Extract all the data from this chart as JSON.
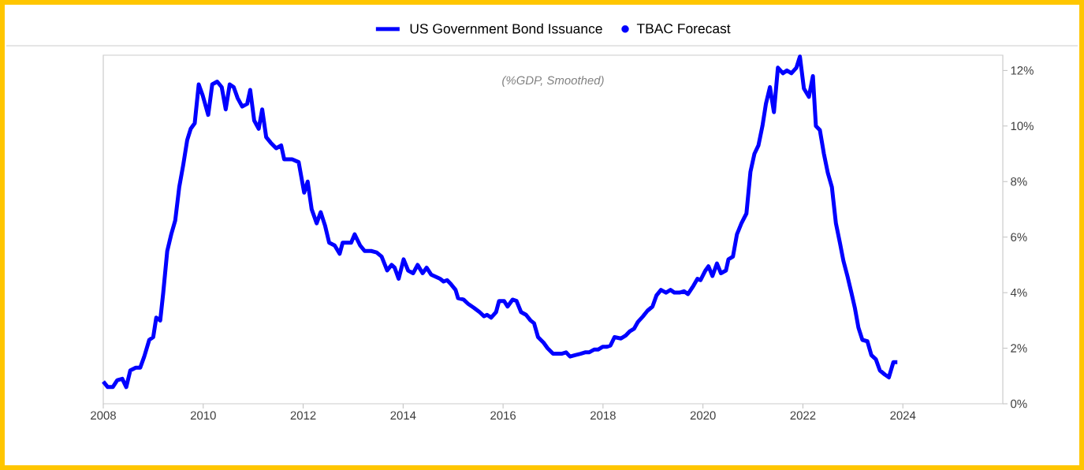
{
  "chart_data": {
    "type": "line",
    "annotations": [
      "(%GDP, Smoothed)"
    ],
    "legend": "top",
    "xlim": [
      2008,
      2026
    ],
    "xticks": [
      2008,
      2010,
      2012,
      2014,
      2016,
      2018,
      2020,
      2022,
      2024
    ],
    "ylim": [
      0,
      12.55
    ],
    "yticks": [
      {
        "value": 0,
        "label": "0%"
      },
      {
        "value": 2,
        "label": "2%"
      },
      {
        "value": 4,
        "label": "4%"
      },
      {
        "value": 6,
        "label": "6%"
      },
      {
        "value": 8,
        "label": "8%"
      },
      {
        "value": 10,
        "label": "10%"
      },
      {
        "value": 12,
        "label": "12%"
      }
    ],
    "series": [
      {
        "name": "US Government Bond Issuance",
        "color": "#0000ff",
        "x": [
          2008.0,
          2008.09,
          2008.19,
          2008.28,
          2008.38,
          2008.46,
          2008.54,
          2008.65,
          2008.74,
          2008.82,
          2008.92,
          2009.0,
          2009.06,
          2009.14,
          2009.2,
          2009.28,
          2009.36,
          2009.44,
          2009.52,
          2009.6,
          2009.68,
          2009.75,
          2009.83,
          2009.91,
          2009.99,
          2010.1,
          2010.18,
          2010.28,
          2010.37,
          2010.45,
          2010.53,
          2010.61,
          2010.69,
          2010.78,
          2010.88,
          2010.94,
          2011.02,
          2011.11,
          2011.18,
          2011.26,
          2011.35,
          2011.46,
          2011.56,
          2011.62,
          2011.78,
          2011.91,
          2012.02,
          2012.09,
          2012.17,
          2012.27,
          2012.35,
          2012.44,
          2012.52,
          2012.63,
          2012.73,
          2012.79,
          2012.89,
          2012.96,
          2013.03,
          2013.14,
          2013.23,
          2013.36,
          2013.47,
          2013.57,
          2013.68,
          2013.77,
          2013.83,
          2013.91,
          2014.01,
          2014.1,
          2014.2,
          2014.29,
          2014.39,
          2014.47,
          2014.56,
          2014.62,
          2014.74,
          2014.81,
          2014.88,
          2014.96,
          2015.05,
          2015.1,
          2015.21,
          2015.3,
          2015.42,
          2015.53,
          2015.62,
          2015.68,
          2015.76,
          2015.86,
          2015.92,
          2016.02,
          2016.09,
          2016.19,
          2016.27,
          2016.36,
          2016.46,
          2016.55,
          2016.62,
          2016.7,
          2016.81,
          2016.89,
          2017.0,
          2017.09,
          2017.17,
          2017.26,
          2017.34,
          2017.44,
          2017.55,
          2017.64,
          2017.72,
          2017.82,
          2017.9,
          2017.99,
          2018.07,
          2018.15,
          2018.23,
          2018.36,
          2018.45,
          2018.53,
          2018.62,
          2018.7,
          2018.8,
          2018.89,
          2018.99,
          2019.07,
          2019.16,
          2019.26,
          2019.35,
          2019.43,
          2019.53,
          2019.62,
          2019.7,
          2019.81,
          2019.89,
          2019.95,
          2020.05,
          2020.11,
          2020.19,
          2020.28,
          2020.36,
          2020.46,
          2020.51,
          2020.6,
          2020.68,
          2020.77,
          2020.87,
          2020.95,
          2021.03,
          2021.11,
          2021.19,
          2021.26,
          2021.34,
          2021.42,
          2021.5,
          2021.6,
          2021.68,
          2021.77,
          2021.87,
          2021.94,
          2022.02,
          2022.12,
          2022.2,
          2022.26,
          2022.34,
          2022.42,
          2022.5,
          2022.58,
          2022.66,
          2022.74,
          2022.81,
          2022.89,
          2022.97,
          2023.04,
          2023.11,
          2023.19,
          2023.29,
          2023.37,
          2023.46,
          2023.54,
          2023.64,
          2023.72,
          2023.81,
          2023.89
        ],
        "values": [
          0.8,
          0.6,
          0.6,
          0.85,
          0.9,
          0.6,
          1.2,
          1.3,
          1.3,
          1.7,
          2.3,
          2.4,
          3.1,
          3.0,
          4.0,
          5.5,
          6.1,
          6.6,
          7.8,
          8.6,
          9.5,
          9.9,
          10.1,
          11.5,
          11.1,
          10.4,
          11.5,
          11.6,
          11.4,
          10.6,
          11.5,
          11.4,
          11.0,
          10.7,
          10.8,
          11.3,
          10.2,
          9.9,
          10.6,
          9.6,
          9.4,
          9.2,
          9.3,
          8.8,
          8.8,
          8.7,
          7.6,
          8.0,
          7.0,
          6.5,
          6.9,
          6.4,
          5.8,
          5.7,
          5.4,
          5.8,
          5.8,
          5.8,
          6.1,
          5.7,
          5.5,
          5.5,
          5.45,
          5.3,
          4.8,
          5.0,
          4.9,
          4.5,
          5.2,
          4.8,
          4.7,
          5.0,
          4.7,
          4.9,
          4.65,
          4.6,
          4.5,
          4.4,
          4.45,
          4.3,
          4.1,
          3.8,
          3.75,
          3.6,
          3.45,
          3.3,
          3.15,
          3.2,
          3.1,
          3.3,
          3.7,
          3.7,
          3.5,
          3.75,
          3.7,
          3.3,
          3.2,
          3.0,
          2.9,
          2.4,
          2.2,
          2.0,
          1.8,
          1.8,
          1.8,
          1.85,
          1.7,
          1.75,
          1.8,
          1.85,
          1.85,
          1.95,
          1.95,
          2.05,
          2.05,
          2.1,
          2.4,
          2.35,
          2.45,
          2.6,
          2.7,
          2.95,
          3.15,
          3.35,
          3.5,
          3.9,
          4.1,
          4.0,
          4.1,
          4.0,
          4.0,
          4.05,
          3.95,
          4.25,
          4.5,
          4.45,
          4.8,
          4.95,
          4.6,
          5.05,
          4.7,
          4.8,
          5.2,
          5.3,
          6.1,
          6.5,
          6.85,
          8.35,
          9.0,
          9.3,
          10.0,
          10.8,
          11.4,
          10.5,
          12.1,
          11.9,
          12.0,
          11.9,
          12.1,
          12.5,
          11.35,
          11.05,
          11.8,
          10.0,
          9.85,
          9.0,
          8.3,
          7.8,
          6.5,
          5.8,
          5.15,
          4.6,
          4.0,
          3.45,
          2.75,
          2.3,
          2.25,
          1.75,
          1.6,
          1.2,
          1.05,
          0.95,
          1.5,
          1.5
        ]
      },
      {
        "name": "TBAC Forecast",
        "type": "scatter",
        "marker": "circle",
        "color": "#0000ff"
      }
    ]
  }
}
